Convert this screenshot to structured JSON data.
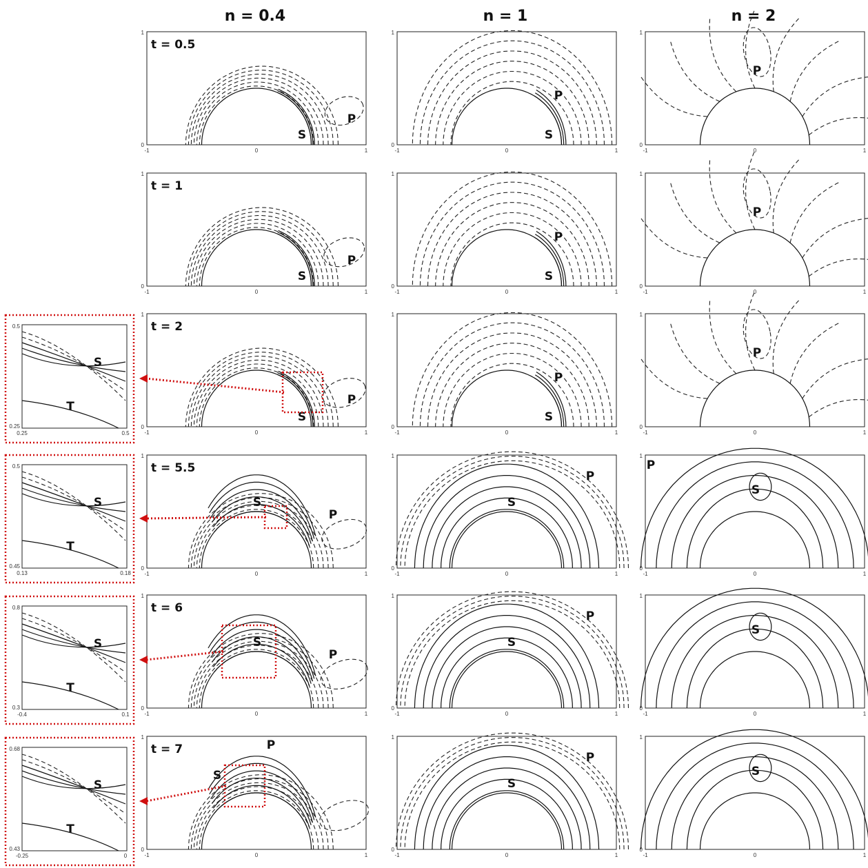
{
  "columns": [
    {
      "title": "n = 0.4"
    },
    {
      "title": "n = 1"
    },
    {
      "title": "n = 2"
    }
  ],
  "rows": [
    {
      "time": "t = 0.5"
    },
    {
      "time": "t = 1"
    },
    {
      "time": "t = 2"
    },
    {
      "time": "t = 5.5"
    },
    {
      "time": "t = 6"
    },
    {
      "time": "t = 7"
    }
  ],
  "axes": {
    "x_ticks": [
      "-1",
      "0",
      "1"
    ],
    "y_ticks": [
      "0",
      "1"
    ]
  },
  "region_labels": {
    "primary": "P",
    "secondary": "S",
    "tertiary": "T"
  },
  "zoom_panels": [
    {
      "row": "t = 2",
      "x_ticks": [
        "0.25",
        "0.5"
      ],
      "y_ticks": [
        "0.25",
        "0.5"
      ]
    },
    {
      "row": "t = 5.5",
      "x_ticks": [
        "0.13",
        "0.18"
      ],
      "y_ticks": [
        "0.45",
        "0.5"
      ]
    },
    {
      "row": "t = 6",
      "x_ticks": [
        "-0.4",
        "0.1"
      ],
      "y_ticks": [
        "0.3",
        "0.8"
      ]
    },
    {
      "row": "t = 7",
      "x_ticks": [
        "-0.25",
        "0"
      ],
      "y_ticks": [
        "0.43",
        "0.68"
      ]
    }
  ],
  "colors": {
    "contour": "#111111",
    "zoom_marker": "#d01010"
  }
}
